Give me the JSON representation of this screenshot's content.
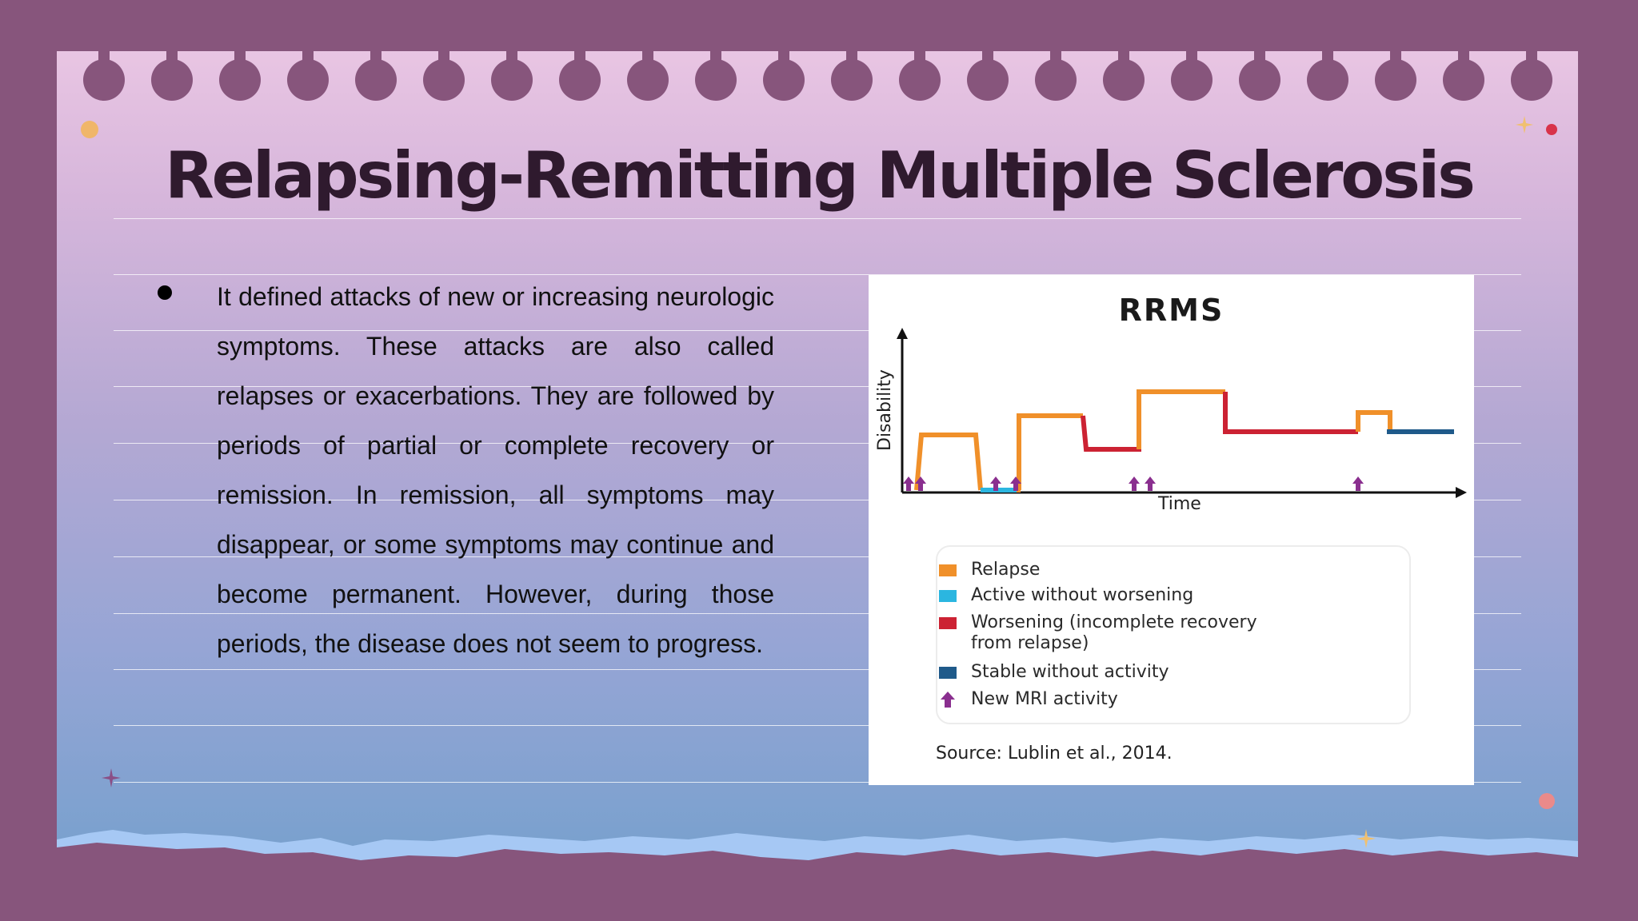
{
  "slide": {
    "title": "Relapsing-Remitting Multiple Sclerosis",
    "body": "It defined attacks of new or increasing neurologic symptoms. These attacks are also called relapses or exacerbations. They are followed by periods of partial or complete recovery or remission. In remission, all symptoms may disappear, or some symptoms may continue and become permanent. However, during those periods, the disease does not seem to progress."
  },
  "figure": {
    "title": "RRMS",
    "ylabel": "Disability",
    "xlabel": "Time",
    "legend": [
      {
        "label": "Relapse",
        "color": "#f0902a"
      },
      {
        "label": "Active without worsening",
        "color": "#2bb6e0"
      },
      {
        "label": "Worsening (incomplete recovery",
        "label2": "from relapse)",
        "color": "#cc2233"
      },
      {
        "label": "Stable without activity",
        "color": "#1f5a8a"
      },
      {
        "label": "New MRI activity",
        "color": "#8a2f8f",
        "icon": "arrow-up-icon"
      }
    ],
    "source": "Source: Lublin et al., 2014."
  },
  "colors": {
    "background": "#87557c",
    "title": "#2f1a2e",
    "relapse": "#f0902a",
    "active": "#2bb6e0",
    "worsening": "#cc2233",
    "stable": "#1f5a8a",
    "mri": "#8a2f8f"
  }
}
